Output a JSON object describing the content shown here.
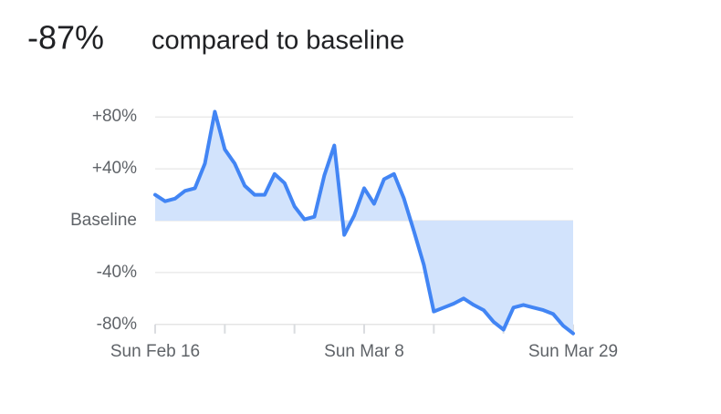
{
  "chart_data": {
    "type": "area",
    "headline": "-87%",
    "title": "compared to baseline",
    "categories": [
      "Sun Feb 16",
      null,
      null,
      null,
      null,
      null,
      null,
      null,
      null,
      null,
      null,
      null,
      null,
      null,
      null,
      null,
      null,
      null,
      null,
      null,
      null,
      "Sun Mar 8",
      null,
      null,
      null,
      null,
      null,
      null,
      null,
      null,
      null,
      null,
      null,
      null,
      null,
      null,
      null,
      null,
      null,
      null,
      null,
      null,
      "Sun Mar 29"
    ],
    "values": [
      20,
      15,
      17,
      23,
      25,
      44,
      84,
      55,
      44,
      27,
      20,
      20,
      36,
      29,
      11,
      1,
      3,
      35,
      58,
      -11,
      4,
      25,
      13,
      32,
      36,
      17,
      -8,
      -34,
      -70,
      -67,
      -64,
      -60,
      -65,
      -69,
      -78,
      -84,
      -67,
      -65,
      -67,
      -69,
      -72,
      -81,
      -87
    ],
    "color": "#4285f4",
    "fill": "#d2e3fc",
    "ylim": [
      -90,
      90
    ],
    "yticks": [
      {
        "value": 80,
        "label": "+80%"
      },
      {
        "value": 40,
        "label": "+40%"
      },
      {
        "value": 0,
        "label": "Baseline"
      },
      {
        "value": -40,
        "label": "-40%"
      },
      {
        "value": -80,
        "label": "-80%"
      }
    ],
    "grid": true
  }
}
